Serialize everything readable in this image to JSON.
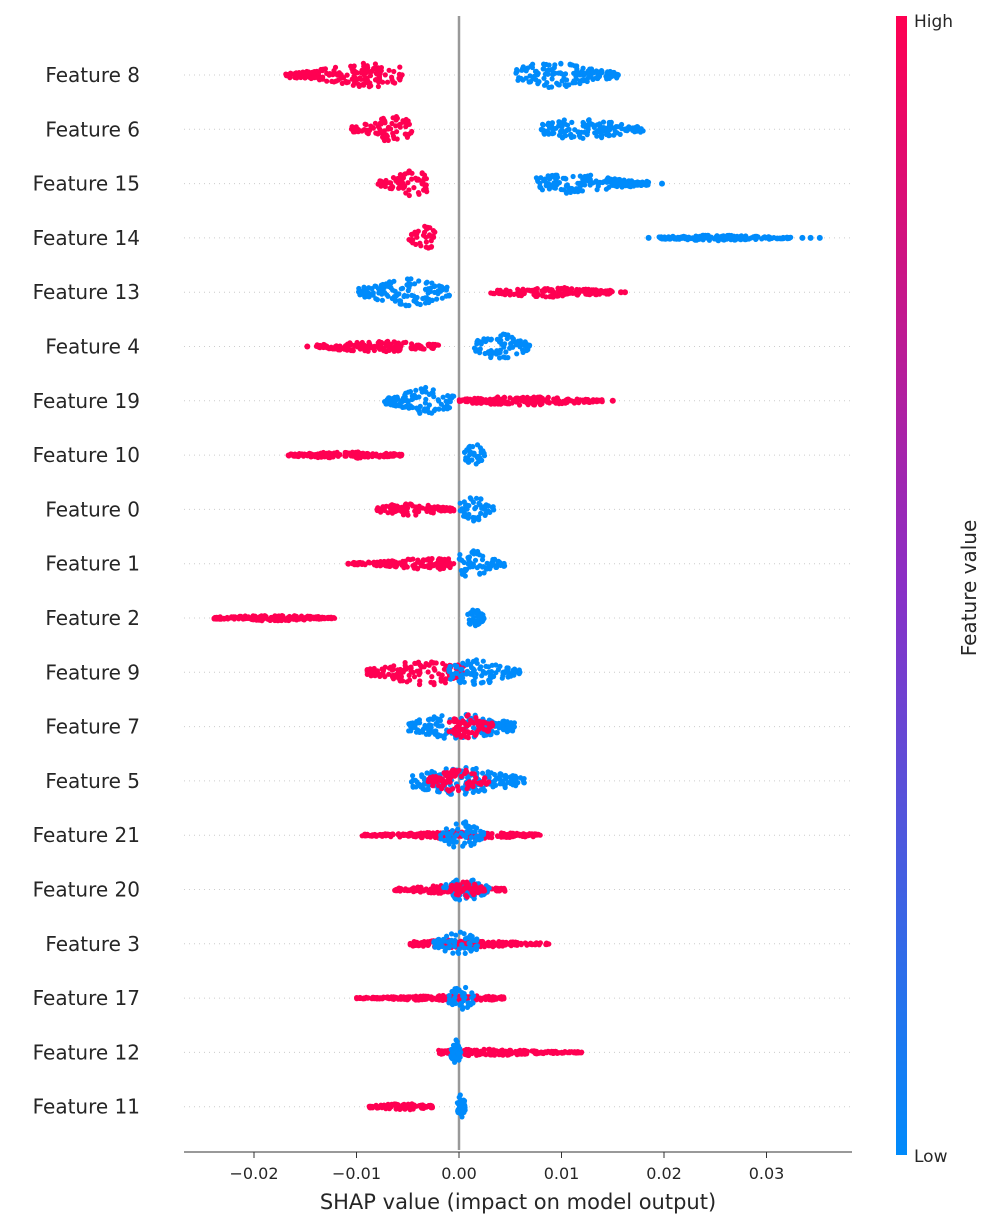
{
  "chart_data": {
    "type": "scatter",
    "subtype": "shap-beeswarm-summary",
    "xlabel": "SHAP value (impact on model output)",
    "xlim": [
      -0.0267,
      0.0387
    ],
    "xticks": [
      {
        "value": -0.02,
        "label": "−0.02"
      },
      {
        "value": -0.01,
        "label": "−0.01"
      },
      {
        "value": 0.0,
        "label": "0.00"
      },
      {
        "value": 0.01,
        "label": "0.01"
      },
      {
        "value": 0.02,
        "label": "0.02"
      },
      {
        "value": 0.03,
        "label": "0.03"
      }
    ],
    "colorbar": {
      "label": "Feature value",
      "high_label": "High",
      "low_label": "Low",
      "high_color": "#ff0052",
      "mid_color": "#a020a0",
      "low_color": "#008bfb"
    },
    "features": [
      {
        "name": "Feature 8",
        "segments": [
          {
            "color": "high",
            "min": -0.017,
            "max": -0.0055,
            "peak": -0.0088,
            "width": 0.22
          },
          {
            "color": "low",
            "min": 0.0055,
            "max": 0.0155,
            "peak": 0.009,
            "width": 0.24
          }
        ],
        "outliers": [
          {
            "x": -0.0167,
            "color": "high"
          },
          {
            "x": -0.016,
            "color": "high"
          },
          {
            "x": 0.0155,
            "color": "low"
          }
        ]
      },
      {
        "name": "Feature 6",
        "segments": [
          {
            "color": "high",
            "min": -0.0105,
            "max": -0.0045,
            "peak": -0.0065,
            "width": 0.24
          },
          {
            "color": "low",
            "min": 0.008,
            "max": 0.018,
            "peak": 0.012,
            "width": 0.2
          }
        ],
        "outliers": []
      },
      {
        "name": "Feature 15",
        "segments": [
          {
            "color": "high",
            "min": -0.008,
            "max": -0.003,
            "peak": -0.0045,
            "width": 0.24
          },
          {
            "color": "low",
            "min": 0.0075,
            "max": 0.0185,
            "peak": 0.011,
            "width": 0.18
          }
        ],
        "outliers": [
          {
            "x": 0.0198,
            "color": "low"
          }
        ]
      },
      {
        "name": "Feature 14",
        "segments": [
          {
            "color": "high",
            "min": -0.005,
            "max": -0.0022,
            "peak": -0.0033,
            "width": 0.22
          },
          {
            "color": "low",
            "min": 0.0195,
            "max": 0.0325,
            "peak": 0.025,
            "width": 0.05
          }
        ],
        "outliers": [
          {
            "x": 0.0185,
            "color": "low"
          },
          {
            "x": 0.0335,
            "color": "low"
          },
          {
            "x": 0.0343,
            "color": "low"
          },
          {
            "x": 0.0352,
            "color": "low"
          }
        ]
      },
      {
        "name": "Feature 13",
        "segments": [
          {
            "color": "low",
            "min": -0.0098,
            "max": -0.0008,
            "peak": -0.005,
            "width": 0.25
          },
          {
            "color": "high",
            "min": 0.003,
            "max": 0.015,
            "peak": 0.009,
            "width": 0.09
          }
        ],
        "outliers": [
          {
            "x": 0.0162,
            "color": "high"
          },
          {
            "x": 0.0158,
            "color": "high"
          }
        ]
      },
      {
        "name": "Feature 4",
        "segments": [
          {
            "color": "high",
            "min": -0.014,
            "max": -0.002,
            "peak": -0.008,
            "width": 0.1
          },
          {
            "color": "low",
            "min": 0.0015,
            "max": 0.007,
            "peak": 0.004,
            "width": 0.24
          }
        ],
        "outliers": [
          {
            "x": -0.0148,
            "color": "high"
          }
        ]
      },
      {
        "name": "Feature 19",
        "segments": [
          {
            "color": "low",
            "min": -0.0075,
            "max": -0.0005,
            "peak": -0.003,
            "width": 0.25
          },
          {
            "color": "high",
            "min": 0.0,
            "max": 0.014,
            "peak": 0.006,
            "width": 0.08
          }
        ],
        "outliers": [
          {
            "x": 0.015,
            "color": "high"
          }
        ]
      },
      {
        "name": "Feature 10",
        "segments": [
          {
            "color": "high",
            "min": -0.0167,
            "max": -0.0055,
            "peak": -0.011,
            "width": 0.06
          },
          {
            "color": "low",
            "min": 0.0005,
            "max": 0.0025,
            "peak": 0.0015,
            "width": 0.22
          }
        ],
        "outliers": []
      },
      {
        "name": "Feature 0",
        "segments": [
          {
            "color": "high",
            "min": -0.008,
            "max": -0.0005,
            "peak": -0.005,
            "width": 0.11
          },
          {
            "color": "low",
            "min": 0.0,
            "max": 0.0035,
            "peak": 0.0015,
            "width": 0.24
          }
        ],
        "outliers": []
      },
      {
        "name": "Feature 1",
        "segments": [
          {
            "color": "high",
            "min": -0.0105,
            "max": -0.0005,
            "peak": -0.003,
            "width": 0.11
          },
          {
            "color": "low",
            "min": 0.0,
            "max": 0.0045,
            "peak": 0.0012,
            "width": 0.25
          }
        ],
        "outliers": [
          {
            "x": -0.0108,
            "color": "high"
          }
        ]
      },
      {
        "name": "Feature 2",
        "segments": [
          {
            "color": "high",
            "min": -0.024,
            "max": -0.012,
            "peak": -0.018,
            "width": 0.05
          },
          {
            "color": "low",
            "min": 0.0008,
            "max": 0.0025,
            "peak": 0.0015,
            "width": 0.18
          }
        ],
        "outliers": []
      },
      {
        "name": "Feature 9",
        "segments": [
          {
            "color": "high",
            "min": -0.009,
            "max": 0.0005,
            "peak": -0.003,
            "width": 0.24
          },
          {
            "color": "low",
            "min": -0.001,
            "max": 0.006,
            "peak": 0.0015,
            "width": 0.24
          }
        ],
        "outliers": []
      },
      {
        "name": "Feature 7",
        "segments": [
          {
            "color": "low",
            "min": -0.005,
            "max": 0.0055,
            "peak": 0.0,
            "width": 0.24
          },
          {
            "color": "high",
            "min": -0.001,
            "max": 0.0035,
            "peak": 0.0008,
            "width": 0.22
          }
        ],
        "outliers": []
      },
      {
        "name": "Feature 5",
        "segments": [
          {
            "color": "low",
            "min": -0.0048,
            "max": 0.0065,
            "peak": 0.0,
            "width": 0.26
          },
          {
            "color": "high",
            "min": -0.003,
            "max": 0.003,
            "peak": 0.0,
            "width": 0.22
          }
        ],
        "outliers": []
      },
      {
        "name": "Feature 21",
        "segments": [
          {
            "color": "high",
            "min": -0.0095,
            "max": 0.008,
            "peak": 0.0,
            "width": 0.06
          },
          {
            "color": "low",
            "min": -0.0018,
            "max": 0.0025,
            "peak": 0.0003,
            "width": 0.26
          }
        ],
        "outliers": []
      },
      {
        "name": "Feature 20",
        "segments": [
          {
            "color": "high",
            "min": -0.0063,
            "max": 0.0045,
            "peak": -0.0005,
            "width": 0.08
          },
          {
            "color": "low",
            "min": -0.0015,
            "max": 0.003,
            "peak": 0.0005,
            "width": 0.22
          },
          {
            "color": "high",
            "min": -0.001,
            "max": 0.0025,
            "peak": 0.0005,
            "width": 0.15
          }
        ],
        "outliers": []
      },
      {
        "name": "Feature 3",
        "segments": [
          {
            "color": "high",
            "min": -0.0048,
            "max": 0.0088,
            "peak": 0.0,
            "width": 0.07
          },
          {
            "color": "low",
            "min": -0.0025,
            "max": 0.0018,
            "peak": 0.0,
            "width": 0.22
          }
        ],
        "outliers": []
      },
      {
        "name": "Feature 17",
        "segments": [
          {
            "color": "high",
            "min": -0.01,
            "max": 0.0045,
            "peak": -0.0005,
            "width": 0.05
          },
          {
            "color": "low",
            "min": -0.001,
            "max": 0.0015,
            "peak": 0.0002,
            "width": 0.24
          }
        ],
        "outliers": []
      },
      {
        "name": "Feature 12",
        "segments": [
          {
            "color": "high",
            "min": -0.002,
            "max": 0.012,
            "peak": 0.002,
            "width": 0.06
          },
          {
            "color": "low",
            "min": -0.0008,
            "max": 0.0002,
            "peak": -0.0003,
            "width": 0.24
          }
        ],
        "outliers": []
      },
      {
        "name": "Feature 11",
        "segments": [
          {
            "color": "high",
            "min": -0.0088,
            "max": -0.0025,
            "peak": -0.0055,
            "width": 0.06
          },
          {
            "color": "low",
            "min": -0.0002,
            "max": 0.0006,
            "peak": 0.0002,
            "width": 0.25
          }
        ],
        "outliers": []
      }
    ]
  }
}
